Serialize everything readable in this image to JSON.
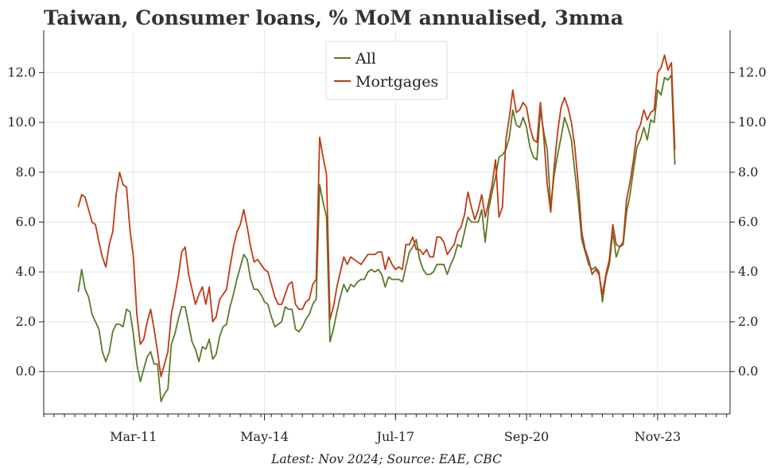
{
  "chart_data": {
    "type": "line",
    "title": "Taiwan, Consumer loans, % MoM annualised, 3mma",
    "footnote": "Latest: Nov 2024; Source: EAE, CBC",
    "ylim": [
      -1.7,
      13.7
    ],
    "yticks": [
      0.0,
      2.0,
      4.0,
      6.0,
      8.0,
      10.0,
      12.0
    ],
    "ytick_labels": [
      "0.0",
      "2.0",
      "4.0",
      "6.0",
      "8.0",
      "10.0",
      "12.0"
    ],
    "x_range": [
      "2009-01",
      "2025-08"
    ],
    "x_ticks": [
      {
        "label": "Mar-11",
        "date": "2011-03"
      },
      {
        "label": "May-14",
        "date": "2014-05"
      },
      {
        "label": "Jul-17",
        "date": "2017-07"
      },
      {
        "label": "Sep-20",
        "date": "2020-09"
      },
      {
        "label": "Nov-23",
        "date": "2023-11"
      }
    ],
    "minor_ticks": "quarterly",
    "legend_position": "top-center",
    "grid": true,
    "series": [
      {
        "name": "All",
        "color": "#5a7a2a",
        "start": "2009-11",
        "frequency": "monthly",
        "values": [
          3.2,
          4.1,
          3.3,
          3.0,
          2.3,
          2.0,
          1.7,
          0.8,
          0.4,
          0.8,
          1.6,
          1.9,
          1.9,
          1.8,
          2.5,
          2.4,
          1.5,
          0.3,
          -0.4,
          0.1,
          0.6,
          0.8,
          0.3,
          0.3,
          -1.2,
          -0.9,
          -0.7,
          1.1,
          1.5,
          2.1,
          2.6,
          2.6,
          1.9,
          1.2,
          0.9,
          0.4,
          1.0,
          0.9,
          1.3,
          0.5,
          0.7,
          1.4,
          1.8,
          1.9,
          2.6,
          3.1,
          3.7,
          4.2,
          4.7,
          4.5,
          3.7,
          3.3,
          3.3,
          3.1,
          2.8,
          2.7,
          2.2,
          1.8,
          1.9,
          2.0,
          2.6,
          2.5,
          2.5,
          1.7,
          1.6,
          1.8,
          2.1,
          2.3,
          2.7,
          2.9,
          7.5,
          6.8,
          6.2,
          1.2,
          1.7,
          2.4,
          3.0,
          3.5,
          3.2,
          3.5,
          3.4,
          3.6,
          3.7,
          3.7,
          4.0,
          4.1,
          4.0,
          4.1,
          3.9,
          3.4,
          3.8,
          3.7,
          3.7,
          3.7,
          3.6,
          4.2,
          4.8,
          5.0,
          5.3,
          4.5,
          4.1,
          3.9,
          3.9,
          4.0,
          4.3,
          4.3,
          4.3,
          3.9,
          4.3,
          4.6,
          5.1,
          5.0,
          5.6,
          6.2,
          6.0,
          6.0,
          6.0,
          6.5,
          5.2,
          6.5,
          7.2,
          7.8,
          8.6,
          8.7,
          8.9,
          9.4,
          10.5,
          9.9,
          9.8,
          10.2,
          9.8,
          9.0,
          8.6,
          8.5,
          10.5,
          9.6,
          8.9,
          6.6,
          7.9,
          8.7,
          9.4,
          10.2,
          9.8,
          9.3,
          8.0,
          6.8,
          5.3,
          4.8,
          4.3,
          4.1,
          4.2,
          4.0,
          2.8,
          3.8,
          4.3,
          5.6,
          4.6,
          5.0,
          5.1,
          6.4,
          7.1,
          8.1,
          9.0,
          9.3,
          9.8,
          9.3,
          10.1,
          10.0,
          11.3,
          11.1,
          11.8,
          11.7,
          11.9,
          8.3
        ]
      },
      {
        "name": "Mortgages",
        "color": "#c03a14",
        "start": "2009-11",
        "frequency": "monthly",
        "values": [
          6.6,
          7.1,
          7.0,
          6.5,
          6.0,
          5.9,
          5.2,
          4.6,
          4.2,
          5.1,
          5.6,
          7.1,
          8.0,
          7.5,
          7.4,
          5.7,
          4.6,
          2.3,
          1.1,
          1.3,
          2.0,
          2.5,
          1.7,
          0.8,
          -0.2,
          0.3,
          0.8,
          2.3,
          3.0,
          3.8,
          4.8,
          5.0,
          3.9,
          3.3,
          2.7,
          3.1,
          3.4,
          2.7,
          3.4,
          2.0,
          2.2,
          2.9,
          3.1,
          3.3,
          4.2,
          5.0,
          5.6,
          5.9,
          6.5,
          5.8,
          5.0,
          4.4,
          4.5,
          4.3,
          4.1,
          4.0,
          3.5,
          3.0,
          2.7,
          2.7,
          3.1,
          3.5,
          3.6,
          2.7,
          2.5,
          2.5,
          2.8,
          2.9,
          3.5,
          3.7,
          9.4,
          8.6,
          7.9,
          2.1,
          2.6,
          3.4,
          4.0,
          4.6,
          4.3,
          4.6,
          4.5,
          4.4,
          4.3,
          4.5,
          4.7,
          4.7,
          4.7,
          4.8,
          4.8,
          4.1,
          4.6,
          4.3,
          4.1,
          4.2,
          4.1,
          5.1,
          5.1,
          5.4,
          4.9,
          4.9,
          4.7,
          4.9,
          4.6,
          4.6,
          5.4,
          5.4,
          5.2,
          4.7,
          4.9,
          5.1,
          5.6,
          5.8,
          6.3,
          7.2,
          6.6,
          6.1,
          6.5,
          7.1,
          6.2,
          6.8,
          7.5,
          8.5,
          6.2,
          6.6,
          9.3,
          10.2,
          11.3,
          10.4,
          10.5,
          10.8,
          10.6,
          9.8,
          9.3,
          9.2,
          10.8,
          9.4,
          7.5,
          6.4,
          8.2,
          9.6,
          10.6,
          11.0,
          10.6,
          10.0,
          9.0,
          7.5,
          5.6,
          4.9,
          4.5,
          3.9,
          4.1,
          3.9,
          3.1,
          3.9,
          4.5,
          5.9,
          5.1,
          5.0,
          5.2,
          6.9,
          7.6,
          8.5,
          9.6,
          9.9,
          10.5,
          10.1,
          10.4,
          10.5,
          12.0,
          12.2,
          12.7,
          12.1,
          12.4,
          8.9
        ]
      }
    ]
  }
}
